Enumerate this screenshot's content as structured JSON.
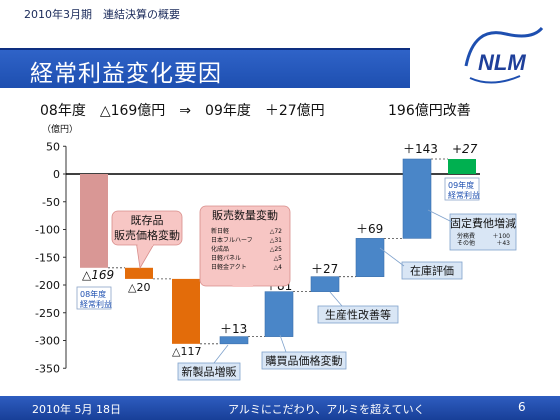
{
  "header": {
    "period": "2010年3月期　連結決算の概要",
    "title": "経常利益変化要因",
    "summary_left": "08年度　△169億円　⇒　09年度　＋27億円",
    "summary_right": "196億円改善"
  },
  "logo": {
    "text": "NLM"
  },
  "footer": {
    "date": "2010年 5月 18日",
    "slogan": "アルミにこだわり、アルミを超えていく",
    "page": "6"
  },
  "chart_data": {
    "type": "waterfall",
    "ylabel": "（億円）",
    "ylim": [
      -350,
      50
    ],
    "yticks": [
      50,
      0,
      -50,
      -100,
      -150,
      -200,
      -250,
      -300,
      -350
    ],
    "bars": [
      {
        "key": "fy08",
        "start": 0,
        "end": -169,
        "color": "#d99795",
        "label": "△169",
        "label_italic": true
      },
      {
        "key": "inventory_price",
        "start": -169,
        "end": -189,
        "color": "#e36c0a",
        "label": "△20"
      },
      {
        "key": "sales_volume",
        "start": -189,
        "end": -306,
        "color": "#e36c0a",
        "label": "△117"
      },
      {
        "key": "new_products",
        "start": -306,
        "end": -293,
        "color": "#4a86c8",
        "label": "＋13"
      },
      {
        "key": "purchase_price",
        "start": -293,
        "end": -212,
        "color": "#4a86c8",
        "label": "＋81"
      },
      {
        "key": "productivity",
        "start": -212,
        "end": -185,
        "color": "#4a86c8",
        "label": "＋27"
      },
      {
        "key": "inventory_valuation",
        "start": -185,
        "end": -116,
        "color": "#4a86c8",
        "label": "＋69"
      },
      {
        "key": "fixed_costs",
        "start": -116,
        "end": 27,
        "color": "#4a86c8",
        "label": "＋143"
      },
      {
        "key": "fy09",
        "start": 0,
        "end": 27,
        "color": "#00b050",
        "label": "+27",
        "label_italic": true
      }
    ],
    "annotations": {
      "fy08_box": "08年度\n経常利益",
      "fy09_box": "09年度\n経常利益",
      "inventory_price": "既存品\n販売価格変動",
      "sales_volume": "販売数量変動",
      "sales_breakdown": [
        {
          "name": "新日軽",
          "value": "△72"
        },
        {
          "name": "日本フルハーフ",
          "value": "△31"
        },
        {
          "name": "化成品",
          "value": "△25"
        },
        {
          "name": "日軽パネル",
          "value": "△5"
        },
        {
          "name": "日軽金アクト",
          "value": "△4"
        }
      ],
      "new_products": "新製品増販",
      "purchase_price": "購買品価格変動",
      "productivity": "生産性改善等",
      "inventory_valuation": "在庫評価",
      "fixed_costs": "固定費他増減",
      "fixed_breakdown": [
        {
          "name": "労務費",
          "value": "＋100"
        },
        {
          "name": "その他",
          "value": "＋43"
        }
      ]
    }
  }
}
